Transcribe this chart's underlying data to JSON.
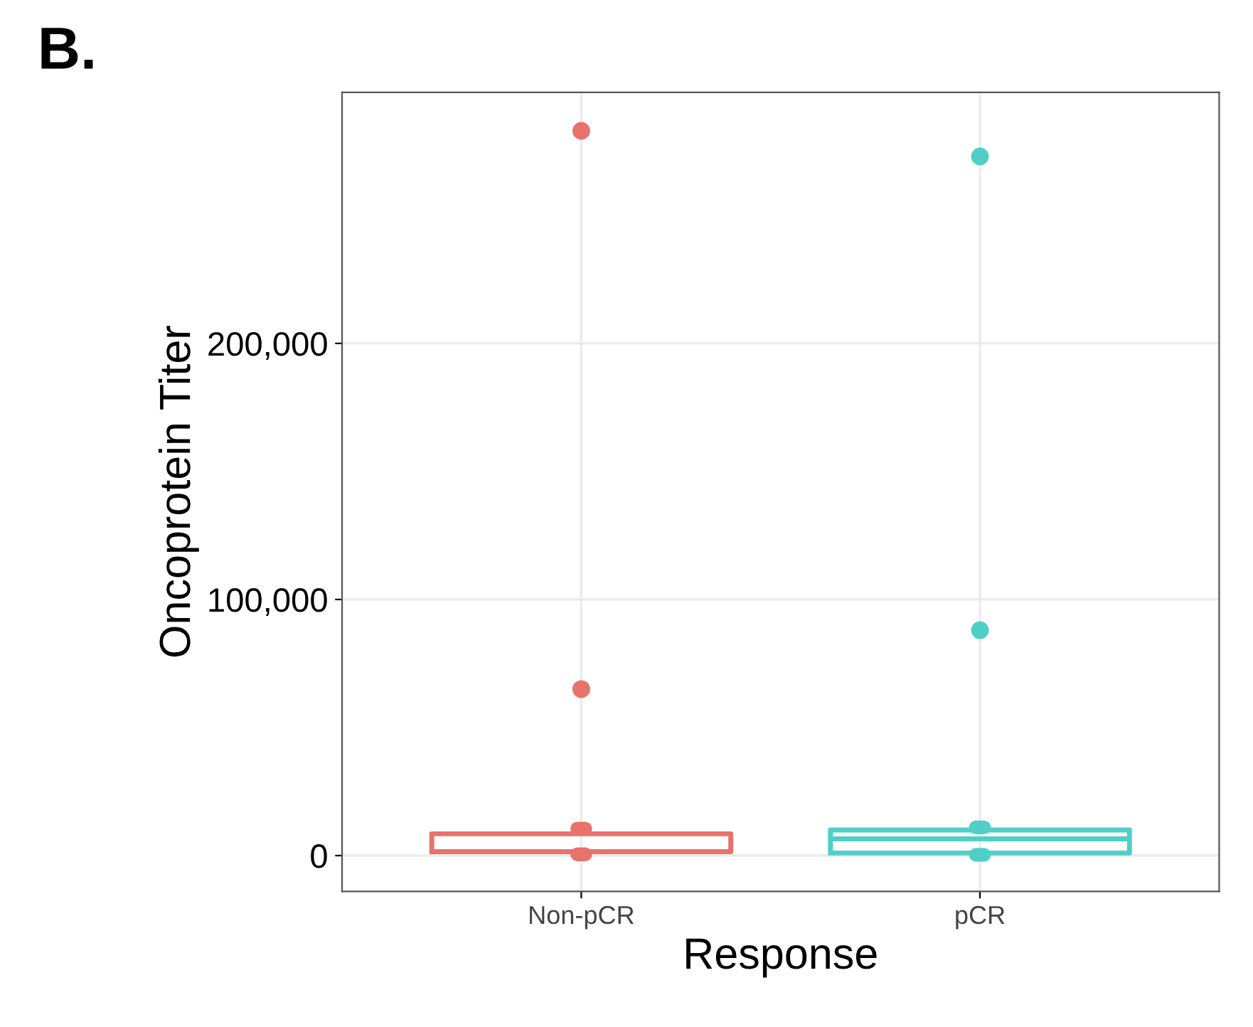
{
  "chart_data": {
    "type": "box",
    "title": "B.",
    "xlabel": "Response",
    "ylabel": "Oncoprotein Titer",
    "categories": [
      "Non-pCR",
      "pCR"
    ],
    "series": [
      {
        "color": "#e8726c",
        "boxes": [
          {
            "low": 500,
            "q1": 1500,
            "median": 1500,
            "q3": 8500,
            "high": 10500,
            "outliers": [
              65000,
              283000
            ]
          },
          null
        ]
      },
      {
        "color": "#4fcfc8",
        "boxes": [
          null,
          {
            "low": 300,
            "q1": 1000,
            "median": 6500,
            "q3": 10000,
            "high": 11000,
            "outliers": [
              88000,
              273000
            ]
          }
        ]
      }
    ],
    "ylim": [
      -14000,
      298000
    ],
    "yticks": [
      {
        "value": 0,
        "label": "0"
      },
      {
        "value": 100000,
        "label": "100,000"
      },
      {
        "value": 200000,
        "label": "200,000"
      }
    ],
    "grid": true
  }
}
